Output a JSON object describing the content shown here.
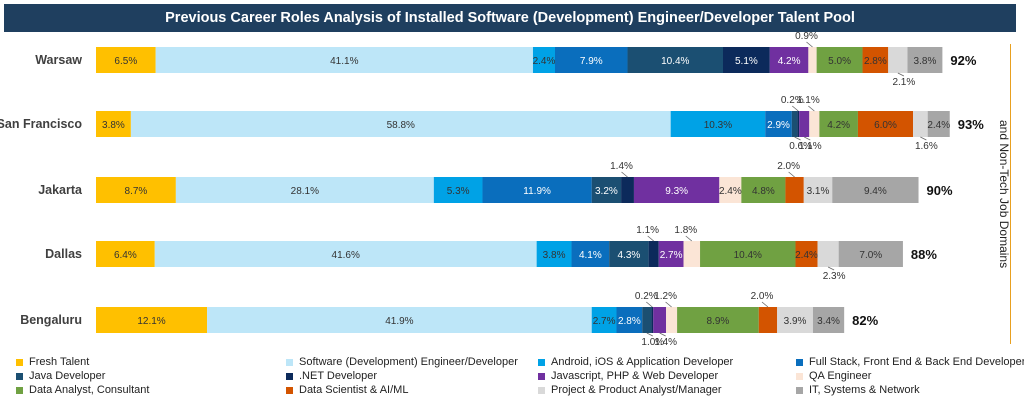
{
  "chart_data": {
    "type": "bar",
    "stacked": true,
    "orientation": "horizontal",
    "title": "Previous Career Roles Analysis of Installed Software (Development) Engineer/Developer Talent Pool",
    "side_label": "and Non-Tech Job Domains",
    "grid": false,
    "legend_position": "bottom",
    "categories": [
      "Warsaw",
      "San Francisco",
      "Jakarta",
      "Dallas",
      "Bengaluru"
    ],
    "totals": [
      "92%",
      "93%",
      "90%",
      "88%",
      "82%"
    ],
    "series": [
      {
        "name": "Fresh Talent",
        "color": "#ffc000",
        "values": [
          6.5,
          3.8,
          8.7,
          6.4,
          12.1
        ]
      },
      {
        "name": "Software (Development) Engineer/Developer",
        "color": "#bde6f8",
        "values": [
          41.1,
          58.8,
          28.1,
          41.6,
          41.9
        ]
      },
      {
        "name": "Android, iOS & Application Developer",
        "color": "#00a2e6",
        "values": [
          2.4,
          10.3,
          5.3,
          3.8,
          2.7
        ]
      },
      {
        "name": "Full Stack, Front End & Back End Developer",
        "color": "#0a6ebd",
        "values": [
          7.9,
          2.9,
          11.9,
          4.1,
          2.8
        ]
      },
      {
        "name": "Java Developer",
        "color": "#1b4f72",
        "values": [
          10.4,
          0.6,
          3.2,
          4.3,
          1.0
        ]
      },
      {
        "name": ".NET Developer",
        "color": "#0c2a5b",
        "values": [
          5.1,
          0.2,
          1.4,
          1.1,
          0.2
        ]
      },
      {
        "name": "Javascript, PHP & Web Developer",
        "color": "#7030a0",
        "values": [
          4.2,
          1.1,
          9.3,
          2.7,
          1.4
        ]
      },
      {
        "name": "QA Engineer",
        "color": "#fbe5d6",
        "values": [
          0.9,
          1.1,
          2.4,
          1.8,
          1.2
        ]
      },
      {
        "name": "Data Analyst, Consultant",
        "color": "#70a142",
        "values": [
          5.0,
          4.2,
          4.8,
          10.4,
          8.9
        ]
      },
      {
        "name": "Data Scientist & AI/ML",
        "color": "#d35400",
        "values": [
          2.8,
          6.0,
          2.0,
          2.4,
          2.0
        ]
      },
      {
        "name": "Project & Product Analyst/Manager",
        "color": "#d9d9d9",
        "values": [
          2.1,
          1.6,
          3.1,
          2.3,
          3.9
        ]
      },
      {
        "name": "IT, Systems & Network",
        "color": "#a6a6a6",
        "values": [
          3.8,
          2.4,
          9.4,
          7.0,
          3.4
        ]
      }
    ],
    "labels": [
      [
        "6.5%",
        "41.1%",
        "2.4%",
        "7.9%",
        "10.4%",
        "5.1%",
        "4.2%",
        "0.9%",
        "5.0%",
        "2.8%",
        "2.1%",
        "3.8%"
      ],
      [
        "3.8%",
        "58.8%",
        "10.3%",
        "2.9%",
        "0.6%",
        "0.2%",
        "1.1%",
        "1.1%",
        "4.2%",
        "6.0%",
        "1.6%",
        "2.4%"
      ],
      [
        "8.7%",
        "28.1%",
        "5.3%",
        "11.9%",
        "3.2%",
        "1.4%",
        "9.3%",
        "2.4%",
        "4.8%",
        "2.0%",
        "3.1%",
        "9.4%"
      ],
      [
        "6.4%",
        "41.6%",
        "3.8%",
        "4.1%",
        "4.3%",
        "1.1%",
        "2.7%",
        "1.8%",
        "10.4%",
        "2.4%",
        "2.3%",
        "7.0%"
      ],
      [
        "12.1%",
        "41.9%",
        "2.7%",
        "2.8%",
        "1.0%",
        "0.2%",
        "1.4%",
        "1.2%",
        "8.9%",
        "2.0%",
        "3.9%",
        "3.4%"
      ]
    ]
  }
}
